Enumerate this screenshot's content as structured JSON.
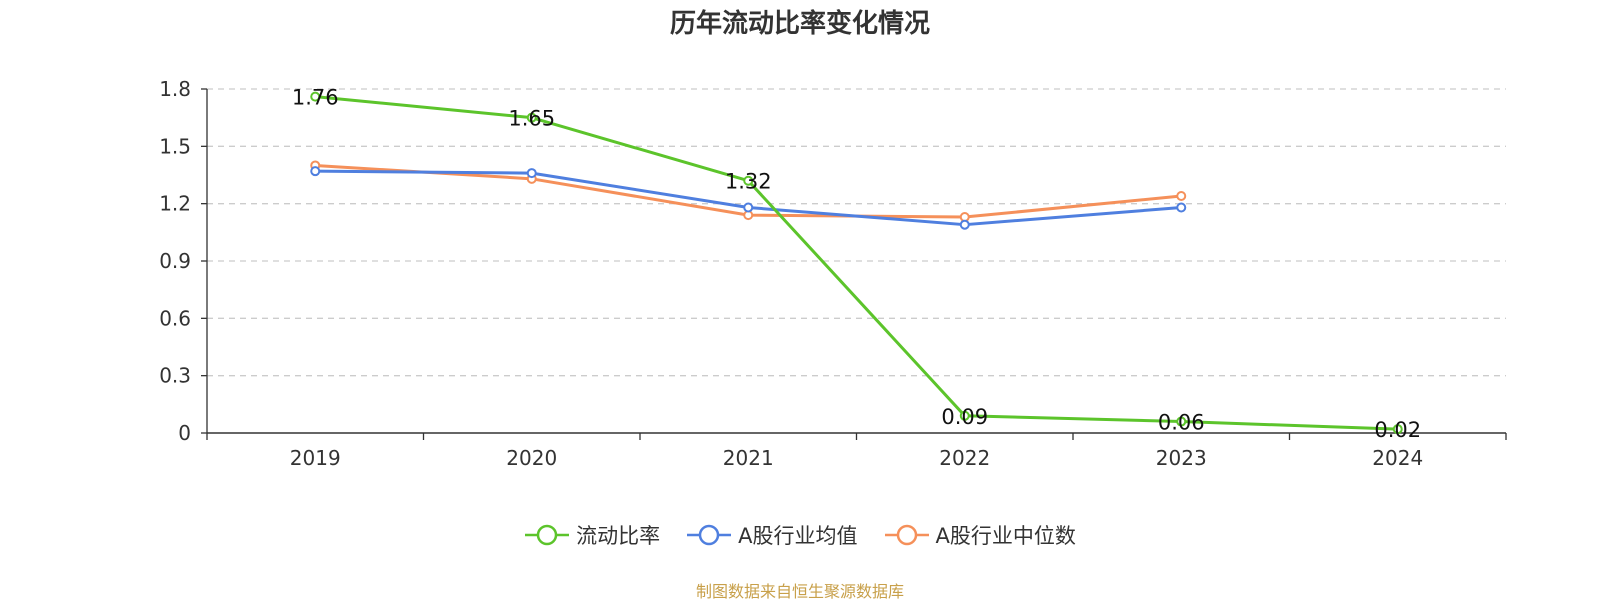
{
  "chart_data": {
    "type": "line",
    "title": "历年流动比率变化情况",
    "categories": [
      "2019",
      "2020",
      "2021",
      "2022",
      "2023",
      "2024"
    ],
    "ylim": [
      0,
      1.8
    ],
    "yticks": [
      "0",
      "0.3",
      "0.6",
      "0.9",
      "1.2",
      "1.5",
      "1.8"
    ],
    "grid": true,
    "legend_position": "bottom",
    "series": [
      {
        "name": "流动比率",
        "color": "#5cc42b",
        "values": [
          1.76,
          1.65,
          1.32,
          0.09,
          0.06,
          0.02
        ],
        "data_labels": [
          "1.76",
          "1.65",
          "1.32",
          "0.09",
          "0.06",
          "0.02"
        ]
      },
      {
        "name": "A股行业均值",
        "color": "#4f7fdf",
        "values": [
          1.37,
          1.36,
          1.18,
          1.09,
          1.18,
          null
        ]
      },
      {
        "name": "A股行业中位数",
        "color": "#f5905a",
        "values": [
          1.4,
          1.33,
          1.14,
          1.13,
          1.24,
          null
        ]
      }
    ]
  },
  "source": "制图数据来自恒生聚源数据库"
}
